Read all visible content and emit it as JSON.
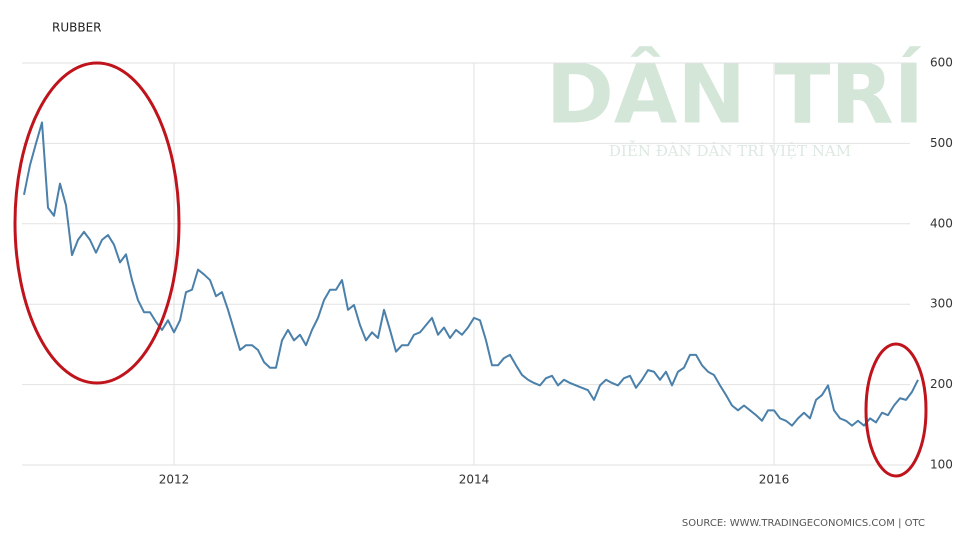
{
  "chart_data": {
    "type": "line",
    "title": "RUBBER",
    "source": "SOURCE: WWW.TRADINGECONOMICS.COM | OTC",
    "watermark": "DÂN TRÍ",
    "watermark_subtitle": "DIỄN ĐÀN DÂN TRÍ VIỆT NAM",
    "color": "#4a80aa",
    "x": [
      2011,
      2011.04,
      2011.08,
      2011.12,
      2011.16,
      2011.2,
      2011.24,
      2011.28,
      2011.32,
      2011.36,
      2011.4,
      2011.44,
      2011.48,
      2011.52,
      2011.56,
      2011.6,
      2011.64,
      2011.68,
      2011.72,
      2011.76,
      2011.8,
      2011.84,
      2011.88,
      2011.92,
      2011.96,
      2012,
      2012.04,
      2012.08,
      2012.12,
      2012.16,
      2012.2,
      2012.24,
      2012.28,
      2012.32,
      2012.36,
      2012.4,
      2012.44,
      2012.48,
      2012.52,
      2012.56,
      2012.6,
      2012.64,
      2012.68,
      2012.72,
      2012.76,
      2012.8,
      2012.84,
      2012.88,
      2012.92,
      2012.96,
      2013,
      2013.04,
      2013.08,
      2013.12,
      2013.16,
      2013.2,
      2013.24,
      2013.28,
      2013.32,
      2013.36,
      2013.4,
      2013.44,
      2013.48,
      2013.52,
      2013.56,
      2013.6,
      2013.64,
      2013.68,
      2013.72,
      2013.76,
      2013.8,
      2013.84,
      2013.88,
      2013.92,
      2013.96,
      2014,
      2014.04,
      2014.08,
      2014.12,
      2014.16,
      2014.2,
      2014.24,
      2014.28,
      2014.32,
      2014.36,
      2014.4,
      2014.44,
      2014.48,
      2014.52,
      2014.56,
      2014.6,
      2014.64,
      2014.68,
      2014.72,
      2014.76,
      2014.8,
      2014.84,
      2014.88,
      2014.92,
      2014.96,
      2015,
      2015.04,
      2015.08,
      2015.12,
      2015.16,
      2015.2,
      2015.24,
      2015.28,
      2015.32,
      2015.36,
      2015.4,
      2015.44,
      2015.48,
      2015.52,
      2015.56,
      2015.6,
      2015.64,
      2015.68,
      2015.72,
      2015.76,
      2015.8,
      2015.84,
      2015.88,
      2015.92,
      2015.96,
      2016,
      2016.04,
      2016.08,
      2016.12,
      2016.16,
      2016.2,
      2016.24,
      2016.28,
      2016.32,
      2016.36,
      2016.4,
      2016.44,
      2016.48,
      2016.52,
      2016.56,
      2016.6,
      2016.64,
      2016.68,
      2016.72,
      2016.76,
      2016.8,
      2016.84,
      2016.88,
      2016.92,
      2016.96
    ],
    "values": [
      436,
      473,
      500,
      526,
      420,
      410,
      450,
      423,
      361,
      380,
      390,
      380,
      364,
      380,
      386,
      374,
      352,
      362,
      330,
      305,
      290,
      290,
      278,
      268,
      280,
      265,
      280,
      315,
      318,
      343,
      337,
      330,
      310,
      315,
      293,
      268,
      243,
      249,
      249,
      243,
      228,
      221,
      221,
      255,
      268,
      255,
      262,
      249,
      268,
      283,
      305,
      318,
      318,
      330,
      293,
      299,
      274,
      255,
      265,
      258,
      293,
      268,
      241,
      249,
      249,
      262,
      265,
      274,
      283,
      262,
      271,
      258,
      268,
      262,
      271,
      283,
      280,
      255,
      224,
      224,
      233,
      237,
      224,
      212,
      206,
      202,
      199,
      208,
      211,
      199,
      206,
      202,
      199,
      196,
      193,
      181,
      199,
      206,
      202,
      199,
      208,
      211,
      196,
      206,
      218,
      216,
      206,
      216,
      199,
      216,
      221,
      237,
      237,
      224,
      216,
      212,
      199,
      187,
      174,
      168,
      174,
      168,
      162,
      155,
      168,
      168,
      158,
      155,
      149,
      158,
      165,
      158,
      181,
      187,
      199,
      168,
      158,
      155,
      149,
      155,
      149,
      158,
      153,
      165,
      162,
      174,
      183,
      181,
      191,
      206
    ],
    "xlim": [
      2011,
      2016.96
    ],
    "xticks": [
      2012,
      2014,
      2016
    ],
    "ylim": [
      100,
      600
    ],
    "yticks": [
      100,
      200,
      300,
      400,
      500,
      600
    ],
    "grid": true
  }
}
